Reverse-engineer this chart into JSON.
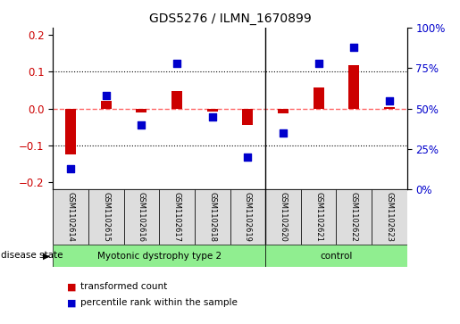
{
  "title": "GDS5276 / ILMN_1670899",
  "samples": [
    "GSM1102614",
    "GSM1102615",
    "GSM1102616",
    "GSM1102617",
    "GSM1102618",
    "GSM1102619",
    "GSM1102620",
    "GSM1102621",
    "GSM1102622",
    "GSM1102623"
  ],
  "red_bars": [
    -0.125,
    0.022,
    -0.01,
    0.048,
    -0.008,
    -0.045,
    -0.012,
    0.057,
    0.118,
    0.005
  ],
  "blue_dots_pct": [
    13,
    58,
    40,
    78,
    45,
    20,
    35,
    78,
    88,
    55
  ],
  "left_ylim": [
    -0.22,
    0.22
  ],
  "left_yticks": [
    -0.2,
    -0.1,
    0.0,
    0.1,
    0.2
  ],
  "right_ylim": [
    0,
    100
  ],
  "right_yticks": [
    0,
    25,
    50,
    75,
    100
  ],
  "right_yticklabels": [
    "0%",
    "25%",
    "50%",
    "75%",
    "100%"
  ],
  "groups": [
    {
      "label": "Myotonic dystrophy type 2",
      "start": 0,
      "end": 6,
      "color": "#90EE90"
    },
    {
      "label": "control",
      "start": 6,
      "end": 10,
      "color": "#90EE90"
    }
  ],
  "disease_state_label": "disease state",
  "legend_items": [
    {
      "color": "#CC0000",
      "label": "transformed count"
    },
    {
      "color": "#0000CC",
      "label": "percentile rank within the sample"
    }
  ],
  "bar_color": "#CC0000",
  "dot_color": "#0000CC",
  "ref_line_color": "#FF6666",
  "grid_color": "#000000",
  "bg_color": "#FFFFFF",
  "plot_bg_color": "#FFFFFF",
  "tick_label_color_left": "#CC0000",
  "tick_label_color_right": "#0000CC",
  "separator_index": 6,
  "label_bg_color": "#DDDDDD"
}
